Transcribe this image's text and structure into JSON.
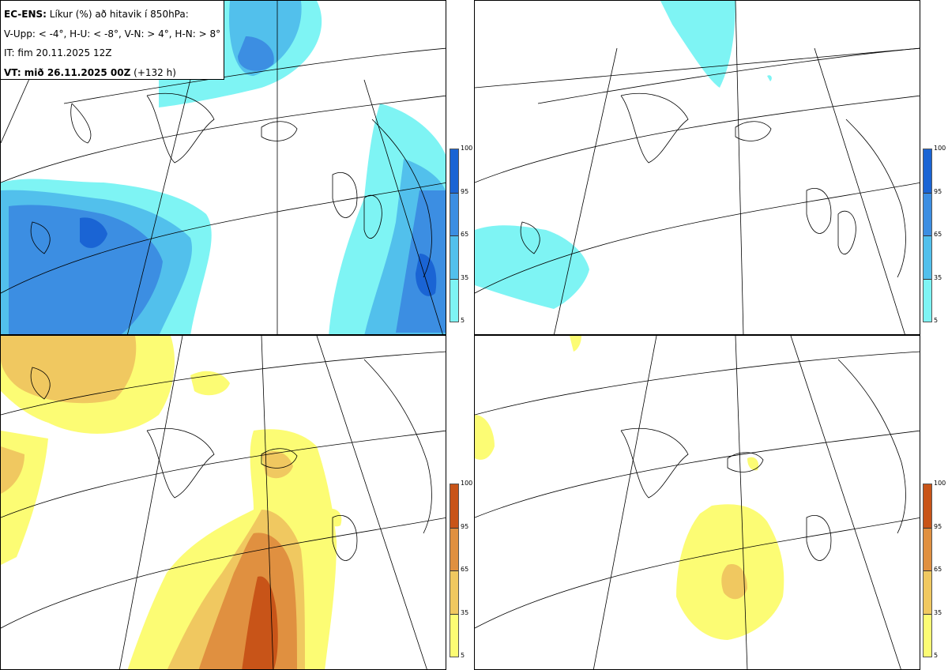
{
  "info": {
    "line1_bold": "EC-ENS:",
    "line1_rest": "Líkur (%) að hitavik í 850hPa:",
    "line2": "V-Upp: < -4°, H-U: < -8°, V-N: > 4°, H-N: > 8°",
    "line3": "IT: fim 20.11.2025 12Z",
    "line4_bold": "VT: mið 26.11.2025 00Z",
    "line4_rest": "(+132 h)"
  },
  "colorbars": {
    "ticks": [
      "100",
      "95",
      "65",
      "35",
      "5"
    ],
    "cold_colors": [
      "#1a64d4",
      "#3c8ee2",
      "#52c0ec",
      "#7ef4f4"
    ],
    "warm_colors": [
      "#c85418",
      "#e09040",
      "#f0c860",
      "#fcfc74"
    ]
  },
  "panels": [
    {
      "id": "V-Upp",
      "scheme": "cold"
    },
    {
      "id": "H-U",
      "scheme": "cold"
    },
    {
      "id": "V-N",
      "scheme": "warm"
    },
    {
      "id": "H-N",
      "scheme": "warm"
    }
  ]
}
